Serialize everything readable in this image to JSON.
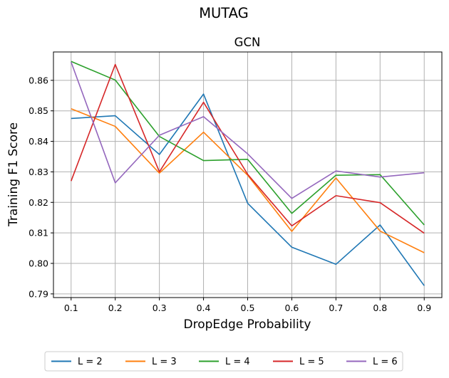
{
  "suptitle": "MUTAG",
  "chart_data": {
    "type": "line",
    "title": "GCN",
    "xlabel": "DropEdge Probability",
    "ylabel": "Training F1 Score",
    "x": [
      0.1,
      0.2,
      0.3,
      0.4,
      0.5,
      0.6,
      0.7,
      0.8,
      0.9
    ],
    "x_tick_labels": [
      "0.1",
      "0.2",
      "0.3",
      "0.4",
      "0.5",
      "0.6",
      "0.7",
      "0.8",
      "0.9"
    ],
    "y_ticks": [
      0.79,
      0.8,
      0.81,
      0.82,
      0.83,
      0.84,
      0.85,
      0.86
    ],
    "y_tick_labels": [
      "0.79",
      "0.80",
      "0.81",
      "0.82",
      "0.83",
      "0.84",
      "0.85",
      "0.86"
    ],
    "xlim": [
      0.06,
      0.94
    ],
    "ylim": [
      0.7888,
      0.8693
    ],
    "grid": true,
    "legend_position": "bottom-center, outside plot",
    "series": [
      {
        "name": "L = 2",
        "color": "#1f77b4",
        "values": [
          0.8475,
          0.8484,
          0.8357,
          0.8555,
          0.8197,
          0.8053,
          0.7997,
          0.8126,
          0.7927
        ]
      },
      {
        "name": "L = 3",
        "color": "#ff7f0e",
        "values": [
          0.8507,
          0.8449,
          0.8296,
          0.843,
          0.8289,
          0.8105,
          0.828,
          0.8106,
          0.8035
        ]
      },
      {
        "name": "L = 4",
        "color": "#2ca02c",
        "values": [
          0.8662,
          0.8601,
          0.8416,
          0.8337,
          0.8341,
          0.8164,
          0.8289,
          0.8291,
          0.8126
        ]
      },
      {
        "name": "L = 5",
        "color": "#d62728",
        "values": [
          0.827,
          0.8652,
          0.83,
          0.8528,
          0.8292,
          0.8123,
          0.8222,
          0.8199,
          0.8099
        ]
      },
      {
        "name": "L = 6",
        "color": "#9467bd",
        "values": [
          0.866,
          0.8264,
          0.842,
          0.8481,
          0.8359,
          0.8213,
          0.8303,
          0.8283,
          0.8297
        ]
      }
    ]
  }
}
